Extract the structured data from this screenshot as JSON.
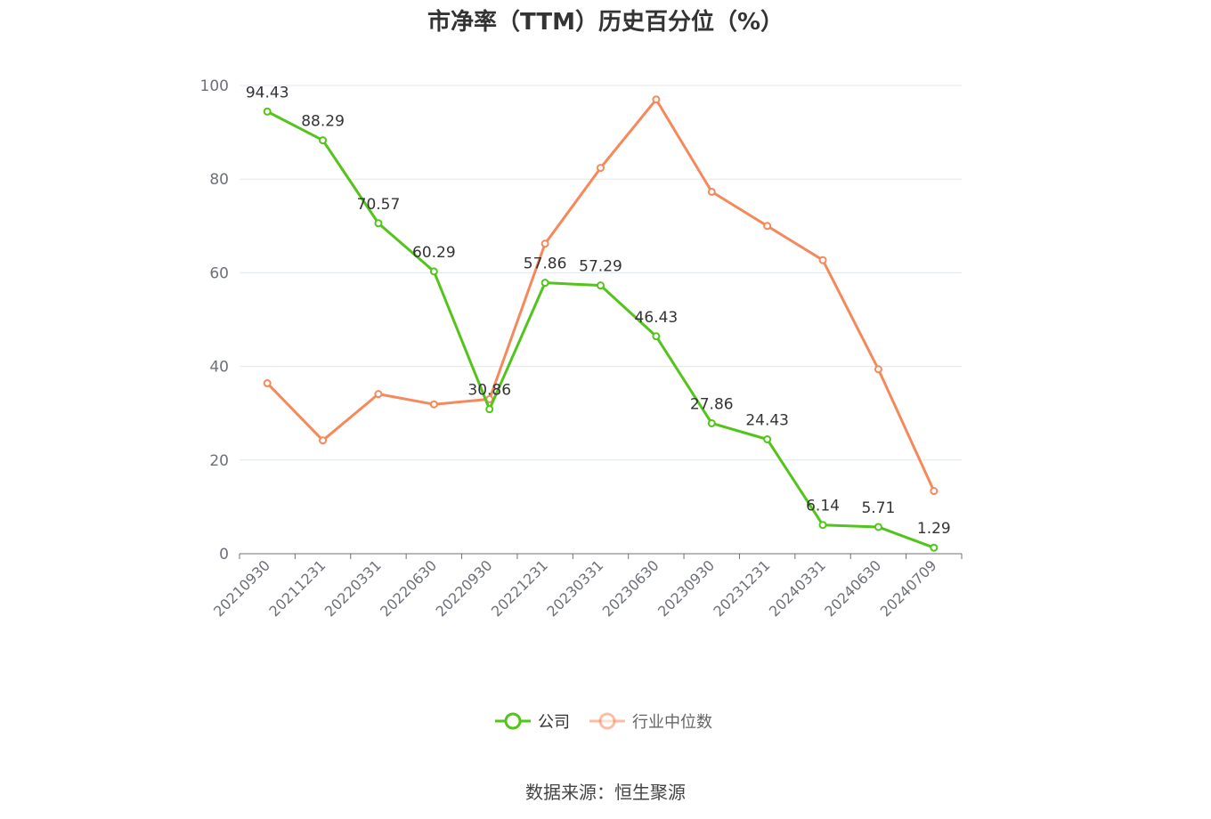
{
  "title": "市净率（TTM）历史百分位（%）",
  "source": "数据来源：恒生聚源",
  "colors": {
    "company": "#52c41a",
    "industry": "#f5895b",
    "grid": "#e0e6f1",
    "axis": "#6e7079"
  },
  "chart_data": {
    "type": "line",
    "title": "市净率（TTM）历史百分位（%）",
    "categories": [
      "20210930",
      "20211231",
      "20220331",
      "20220630",
      "20220930",
      "20221231",
      "20230331",
      "20230630",
      "20230930",
      "20231231",
      "20240331",
      "20240630",
      "20240709"
    ],
    "yticks": [
      0,
      20,
      40,
      60,
      80,
      100
    ],
    "ylim": [
      0,
      100
    ],
    "grid": true,
    "legend_position": "bottom-center",
    "series": [
      {
        "name": "公司",
        "color": "#52c41a",
        "show_labels": true,
        "values": [
          94.43,
          88.29,
          70.57,
          60.29,
          30.86,
          57.86,
          57.29,
          46.43,
          27.86,
          24.43,
          6.14,
          5.71,
          1.29
        ]
      },
      {
        "name": "行业中位数",
        "color": "#f5895b",
        "show_labels": false,
        "values": [
          36.4,
          24.2,
          34.1,
          31.9,
          33.0,
          66.2,
          82.4,
          97.0,
          77.3,
          70.0,
          62.7,
          39.4,
          13.4
        ]
      }
    ]
  }
}
